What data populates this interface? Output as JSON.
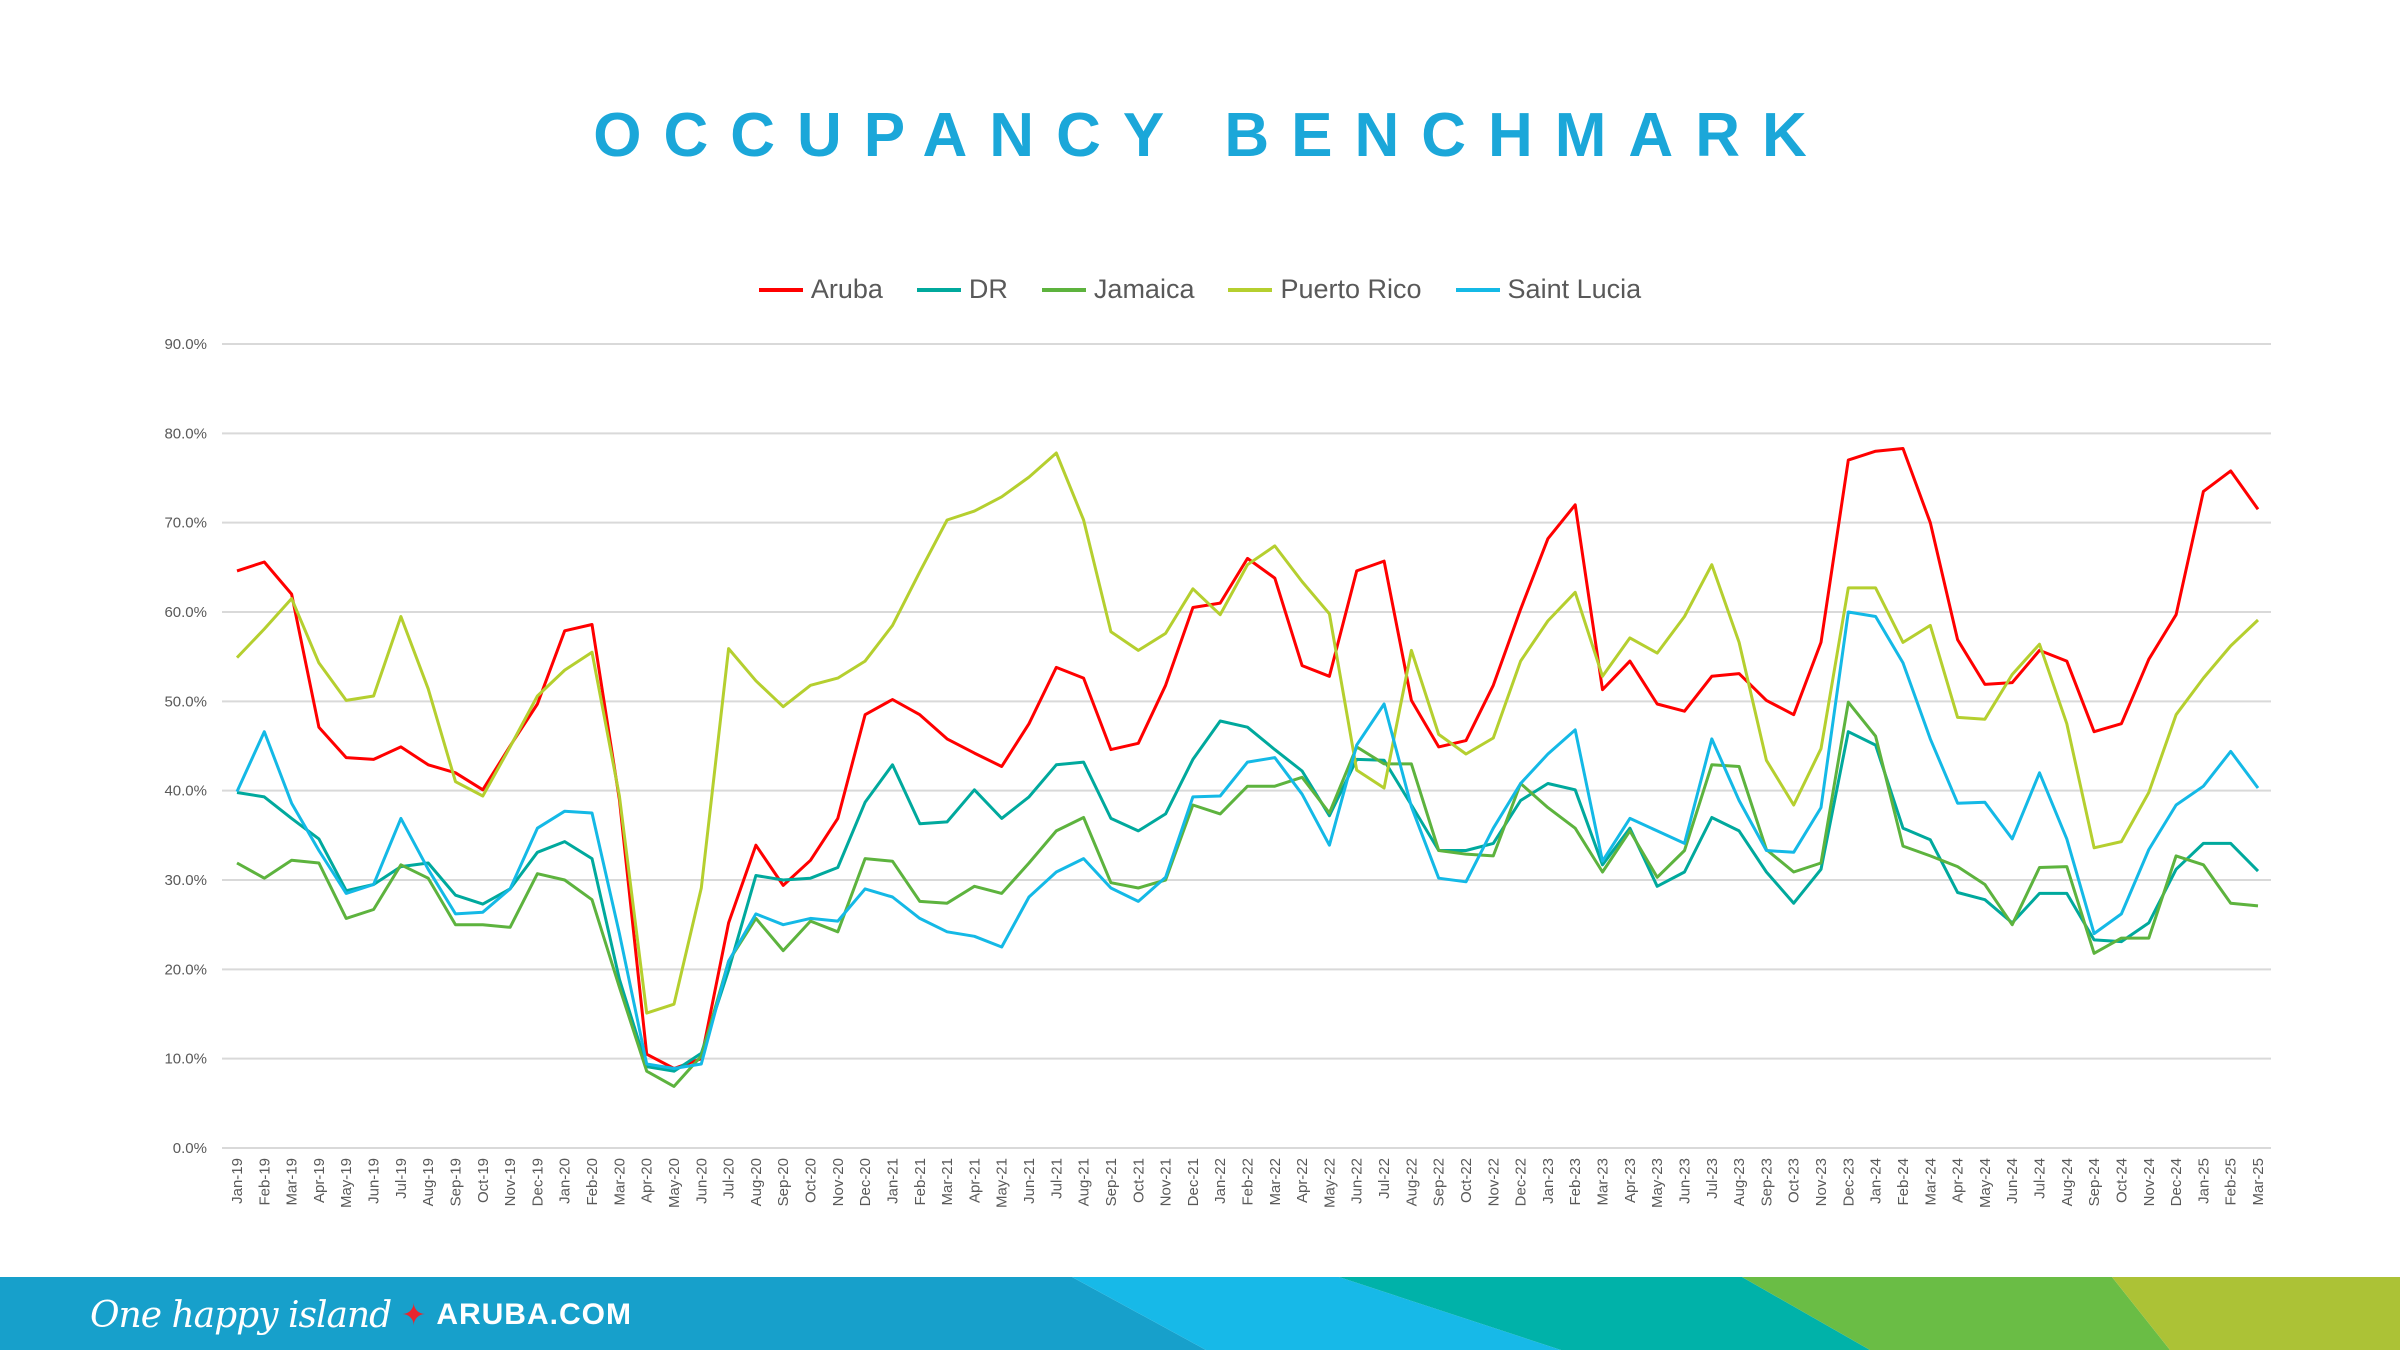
{
  "footer": {
    "tagline": "One happy island",
    "site": "ARUBA.COM",
    "star_color": "#e8262d",
    "stripe_colors": [
      "#17a0cb",
      "#17b9e8",
      "#00b2a9",
      "#6abd45",
      "#acc236"
    ]
  },
  "chart_data": {
    "type": "line",
    "title": "OCCUPANCY BENCHMARK",
    "xlabel": "",
    "ylabel": "",
    "ylim": [
      0,
      90
    ],
    "yticks": [
      0,
      10,
      20,
      30,
      40,
      50,
      60,
      70,
      80,
      90
    ],
    "ytick_labels": [
      "0.0%",
      "10.0%",
      "20.0%",
      "30.0%",
      "40.0%",
      "50.0%",
      "60.0%",
      "70.0%",
      "80.0%",
      "90.0%"
    ],
    "grid": true,
    "legend_position": "top-center",
    "categories": [
      "Jan-19",
      "Feb-19",
      "Mar-19",
      "Apr-19",
      "May-19",
      "Jun-19",
      "Jul-19",
      "Aug-19",
      "Sep-19",
      "Oct-19",
      "Nov-19",
      "Dec-19",
      "Jan-20",
      "Feb-20",
      "Mar-20",
      "Apr-20",
      "May-20",
      "Jun-20",
      "Jul-20",
      "Aug-20",
      "Sep-20",
      "Oct-20",
      "Nov-20",
      "Dec-20",
      "Jan-21",
      "Feb-21",
      "Mar-21",
      "Apr-21",
      "May-21",
      "Jun-21",
      "Jul-21",
      "Aug-21",
      "Sep-21",
      "Oct-21",
      "Nov-21",
      "Dec-21",
      "Jan-22",
      "Feb-22",
      "Mar-22",
      "Apr-22",
      "May-22",
      "Jun-22",
      "Jul-22",
      "Aug-22",
      "Sep-22",
      "Oct-22",
      "Nov-22",
      "Dec-22",
      "Jan-23",
      "Feb-23",
      "Mar-23",
      "Apr-23",
      "May-23",
      "Jun-23",
      "Jul-23",
      "Aug-23",
      "Sep-23",
      "Oct-23",
      "Nov-23",
      "Dec-23",
      "Jan-24",
      "Feb-24",
      "Mar-24",
      "Apr-24",
      "May-24",
      "Jun-24",
      "Jul-24",
      "Aug-24",
      "Sep-24",
      "Oct-24",
      "Nov-24",
      "Dec-24",
      "Jan-25",
      "Feb-25",
      "Mar-25"
    ],
    "series": [
      {
        "name": "Aruba",
        "color": "#ff0000",
        "values": [
          64.6,
          65.6,
          62.0,
          47.1,
          43.7,
          43.5,
          44.9,
          42.9,
          42.0,
          40.1,
          45.0,
          49.7,
          57.9,
          58.6,
          39.0,
          10.5,
          8.9,
          10.0,
          25.2,
          33.9,
          29.4,
          32.2,
          36.9,
          48.5,
          50.2,
          48.5,
          45.8,
          44.2,
          42.7,
          47.5,
          53.8,
          52.6,
          44.6,
          45.3,
          51.8,
          60.5,
          61.0,
          66.0,
          63.8,
          54.0,
          52.8,
          64.6,
          65.7,
          50.1,
          44.9,
          45.6,
          51.8,
          60.3,
          68.2,
          72.0,
          51.3,
          54.5,
          49.7,
          48.9,
          52.8,
          53.1,
          50.1,
          48.5,
          56.6,
          77.0,
          78.0,
          78.3,
          70.0,
          56.9,
          51.9,
          52.1,
          55.7,
          54.5,
          46.6,
          47.5,
          54.7,
          59.7,
          73.5,
          75.8,
          71.5
        ]
      },
      {
        "name": "DR",
        "color": "#00a99d",
        "values": [
          39.8,
          39.3,
          36.9,
          34.6,
          28.8,
          29.5,
          31.5,
          31.9,
          28.3,
          27.3,
          29.0,
          33.1,
          34.3,
          32.4,
          18.9,
          9.1,
          8.6,
          10.6,
          19.9,
          30.5,
          30.0,
          30.2,
          31.4,
          38.7,
          42.9,
          36.3,
          36.5,
          40.1,
          36.9,
          39.3,
          42.9,
          43.2,
          36.9,
          35.5,
          37.4,
          43.5,
          47.8,
          47.1,
          44.6,
          42.2,
          37.2,
          43.5,
          43.4,
          38.4,
          33.3,
          33.3,
          34.1,
          38.9,
          40.8,
          40.1,
          31.7,
          35.8,
          29.3,
          30.9,
          37.0,
          35.5,
          30.9,
          27.4,
          31.2,
          46.6,
          45.1,
          35.8,
          34.5,
          28.6,
          27.8,
          25.2,
          28.5,
          28.5,
          23.3,
          23.1,
          25.2,
          31.2,
          34.1,
          34.1,
          31.0
        ]
      },
      {
        "name": "Jamaica",
        "color": "#5db33e",
        "values": [
          31.9,
          30.2,
          32.2,
          31.9,
          25.7,
          26.7,
          31.7,
          30.2,
          25.0,
          25.0,
          24.7,
          30.7,
          30.0,
          27.8,
          18.0,
          8.6,
          6.9,
          10.3,
          20.9,
          25.7,
          22.1,
          25.4,
          24.2,
          32.4,
          32.1,
          27.6,
          27.4,
          29.3,
          28.5,
          31.9,
          35.5,
          37.0,
          29.7,
          29.1,
          30.0,
          38.4,
          37.4,
          40.5,
          40.5,
          41.5,
          37.5,
          44.9,
          43.0,
          43.0,
          33.3,
          32.9,
          32.7,
          40.8,
          38.1,
          35.8,
          30.9,
          35.5,
          30.3,
          33.3,
          42.9,
          42.7,
          33.4,
          30.9,
          31.9,
          49.9,
          46.1,
          33.8,
          32.7,
          31.5,
          29.5,
          25.0,
          31.4,
          31.5,
          21.8,
          23.5,
          23.5,
          32.7,
          31.7,
          27.4,
          27.1
        ]
      },
      {
        "name": "Puerto Rico",
        "color": "#b5cf2f",
        "values": [
          54.9,
          58.1,
          61.5,
          54.3,
          50.1,
          50.6,
          59.5,
          51.4,
          41.0,
          39.4,
          44.9,
          50.6,
          53.5,
          55.5,
          39.4,
          15.1,
          16.1,
          29.1,
          55.9,
          52.3,
          49.4,
          51.8,
          52.6,
          54.5,
          58.5,
          64.5,
          70.3,
          71.3,
          72.9,
          75.1,
          77.8,
          70.3,
          57.8,
          55.7,
          57.6,
          62.6,
          59.7,
          65.3,
          67.4,
          63.4,
          59.8,
          42.3,
          40.3,
          55.7,
          46.3,
          44.1,
          45.9,
          54.5,
          59.0,
          62.2,
          52.8,
          57.1,
          55.4,
          59.5,
          65.3,
          56.6,
          43.4,
          38.4,
          44.7,
          62.7,
          62.7,
          56.6,
          58.5,
          48.2,
          48.0,
          53.0,
          56.4,
          47.5,
          33.6,
          34.3,
          39.8,
          48.5,
          52.6,
          56.2,
          59.1
        ]
      },
      {
        "name": "Saint Lucia",
        "color": "#14b9e6",
        "values": [
          39.9,
          46.6,
          38.6,
          33.3,
          28.5,
          29.5,
          36.9,
          31.2,
          26.2,
          26.4,
          29.0,
          35.8,
          37.7,
          37.5,
          24.0,
          9.4,
          8.9,
          9.4,
          20.9,
          26.2,
          25.0,
          25.7,
          25.4,
          29.0,
          28.1,
          25.7,
          24.2,
          23.7,
          22.5,
          28.1,
          30.9,
          32.4,
          29.1,
          27.6,
          30.3,
          39.3,
          39.4,
          43.2,
          43.7,
          39.6,
          33.9,
          45.1,
          49.7,
          38.2,
          30.2,
          29.8,
          35.8,
          40.8,
          44.1,
          46.8,
          32.1,
          36.9,
          35.5,
          34.1,
          45.8,
          38.9,
          33.3,
          33.1,
          38.1,
          60.0,
          59.5,
          54.3,
          45.8,
          38.6,
          38.7,
          34.6,
          42.0,
          34.6,
          24.0,
          26.2,
          33.4,
          38.4,
          40.5,
          44.4,
          40.3
        ]
      }
    ]
  }
}
